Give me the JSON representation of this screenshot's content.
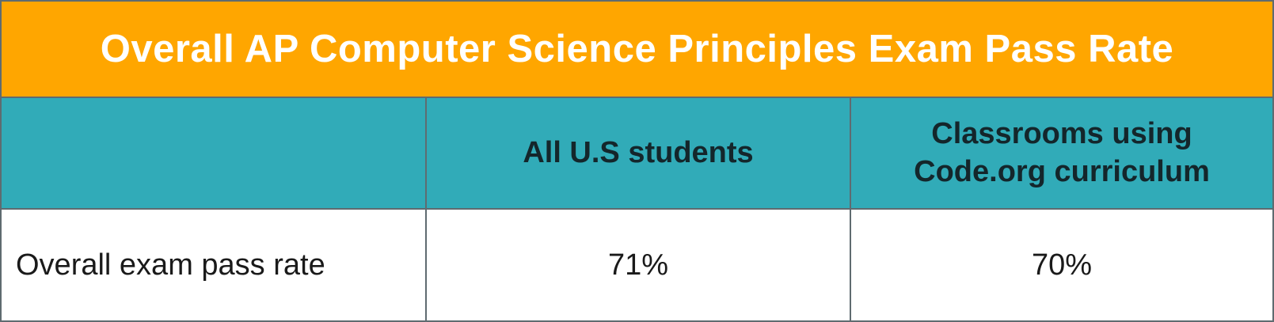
{
  "chart_data": {
    "type": "table",
    "title": "Overall AP Computer Science Principles Exam Pass Rate",
    "columns": [
      "",
      "All U.S students",
      "Classrooms using Code.org curriculum"
    ],
    "rows": [
      {
        "label": "Overall exam pass rate",
        "values": [
          "71%",
          "70%"
        ]
      }
    ]
  },
  "colors": {
    "title_background": "#ffa600",
    "header_background": "#31abb8",
    "border": "#5f6b70",
    "title_text": "#ffffff",
    "header_text": "#14262b"
  }
}
